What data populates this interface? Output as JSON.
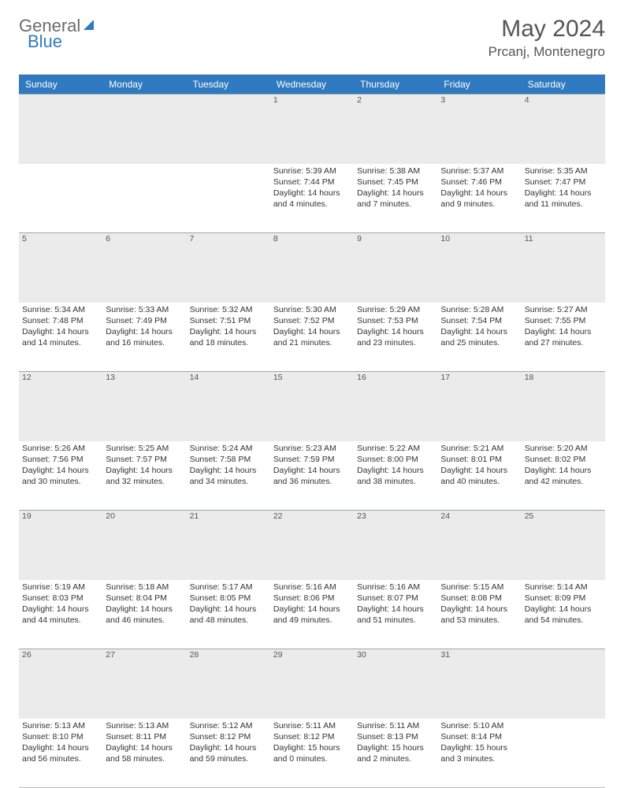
{
  "logo": {
    "text1": "General",
    "text2": "Blue"
  },
  "title": "May 2024",
  "location": "Prcanj, Montenegro",
  "day_headers": [
    "Sunday",
    "Monday",
    "Tuesday",
    "Wednesday",
    "Thursday",
    "Friday",
    "Saturday"
  ],
  "header_bg": "#2f7ac0",
  "header_text": "#ffffff",
  "daynum_bg": "#ebebeb",
  "weeks": [
    {
      "nums": [
        "",
        "",
        "",
        "1",
        "2",
        "3",
        "4"
      ],
      "cells": [
        null,
        null,
        null,
        {
          "sunrise": "Sunrise: 5:39 AM",
          "sunset": "Sunset: 7:44 PM",
          "daylight": "Daylight: 14 hours and 4 minutes."
        },
        {
          "sunrise": "Sunrise: 5:38 AM",
          "sunset": "Sunset: 7:45 PM",
          "daylight": "Daylight: 14 hours and 7 minutes."
        },
        {
          "sunrise": "Sunrise: 5:37 AM",
          "sunset": "Sunset: 7:46 PM",
          "daylight": "Daylight: 14 hours and 9 minutes."
        },
        {
          "sunrise": "Sunrise: 5:35 AM",
          "sunset": "Sunset: 7:47 PM",
          "daylight": "Daylight: 14 hours and 11 minutes."
        }
      ]
    },
    {
      "nums": [
        "5",
        "6",
        "7",
        "8",
        "9",
        "10",
        "11"
      ],
      "cells": [
        {
          "sunrise": "Sunrise: 5:34 AM",
          "sunset": "Sunset: 7:48 PM",
          "daylight": "Daylight: 14 hours and 14 minutes."
        },
        {
          "sunrise": "Sunrise: 5:33 AM",
          "sunset": "Sunset: 7:49 PM",
          "daylight": "Daylight: 14 hours and 16 minutes."
        },
        {
          "sunrise": "Sunrise: 5:32 AM",
          "sunset": "Sunset: 7:51 PM",
          "daylight": "Daylight: 14 hours and 18 minutes."
        },
        {
          "sunrise": "Sunrise: 5:30 AM",
          "sunset": "Sunset: 7:52 PM",
          "daylight": "Daylight: 14 hours and 21 minutes."
        },
        {
          "sunrise": "Sunrise: 5:29 AM",
          "sunset": "Sunset: 7:53 PM",
          "daylight": "Daylight: 14 hours and 23 minutes."
        },
        {
          "sunrise": "Sunrise: 5:28 AM",
          "sunset": "Sunset: 7:54 PM",
          "daylight": "Daylight: 14 hours and 25 minutes."
        },
        {
          "sunrise": "Sunrise: 5:27 AM",
          "sunset": "Sunset: 7:55 PM",
          "daylight": "Daylight: 14 hours and 27 minutes."
        }
      ]
    },
    {
      "nums": [
        "12",
        "13",
        "14",
        "15",
        "16",
        "17",
        "18"
      ],
      "cells": [
        {
          "sunrise": "Sunrise: 5:26 AM",
          "sunset": "Sunset: 7:56 PM",
          "daylight": "Daylight: 14 hours and 30 minutes."
        },
        {
          "sunrise": "Sunrise: 5:25 AM",
          "sunset": "Sunset: 7:57 PM",
          "daylight": "Daylight: 14 hours and 32 minutes."
        },
        {
          "sunrise": "Sunrise: 5:24 AM",
          "sunset": "Sunset: 7:58 PM",
          "daylight": "Daylight: 14 hours and 34 minutes."
        },
        {
          "sunrise": "Sunrise: 5:23 AM",
          "sunset": "Sunset: 7:59 PM",
          "daylight": "Daylight: 14 hours and 36 minutes."
        },
        {
          "sunrise": "Sunrise: 5:22 AM",
          "sunset": "Sunset: 8:00 PM",
          "daylight": "Daylight: 14 hours and 38 minutes."
        },
        {
          "sunrise": "Sunrise: 5:21 AM",
          "sunset": "Sunset: 8:01 PM",
          "daylight": "Daylight: 14 hours and 40 minutes."
        },
        {
          "sunrise": "Sunrise: 5:20 AM",
          "sunset": "Sunset: 8:02 PM",
          "daylight": "Daylight: 14 hours and 42 minutes."
        }
      ]
    },
    {
      "nums": [
        "19",
        "20",
        "21",
        "22",
        "23",
        "24",
        "25"
      ],
      "cells": [
        {
          "sunrise": "Sunrise: 5:19 AM",
          "sunset": "Sunset: 8:03 PM",
          "daylight": "Daylight: 14 hours and 44 minutes."
        },
        {
          "sunrise": "Sunrise: 5:18 AM",
          "sunset": "Sunset: 8:04 PM",
          "daylight": "Daylight: 14 hours and 46 minutes."
        },
        {
          "sunrise": "Sunrise: 5:17 AM",
          "sunset": "Sunset: 8:05 PM",
          "daylight": "Daylight: 14 hours and 48 minutes."
        },
        {
          "sunrise": "Sunrise: 5:16 AM",
          "sunset": "Sunset: 8:06 PM",
          "daylight": "Daylight: 14 hours and 49 minutes."
        },
        {
          "sunrise": "Sunrise: 5:16 AM",
          "sunset": "Sunset: 8:07 PM",
          "daylight": "Daylight: 14 hours and 51 minutes."
        },
        {
          "sunrise": "Sunrise: 5:15 AM",
          "sunset": "Sunset: 8:08 PM",
          "daylight": "Daylight: 14 hours and 53 minutes."
        },
        {
          "sunrise": "Sunrise: 5:14 AM",
          "sunset": "Sunset: 8:09 PM",
          "daylight": "Daylight: 14 hours and 54 minutes."
        }
      ]
    },
    {
      "nums": [
        "26",
        "27",
        "28",
        "29",
        "30",
        "31",
        ""
      ],
      "cells": [
        {
          "sunrise": "Sunrise: 5:13 AM",
          "sunset": "Sunset: 8:10 PM",
          "daylight": "Daylight: 14 hours and 56 minutes."
        },
        {
          "sunrise": "Sunrise: 5:13 AM",
          "sunset": "Sunset: 8:11 PM",
          "daylight": "Daylight: 14 hours and 58 minutes."
        },
        {
          "sunrise": "Sunrise: 5:12 AM",
          "sunset": "Sunset: 8:12 PM",
          "daylight": "Daylight: 14 hours and 59 minutes."
        },
        {
          "sunrise": "Sunrise: 5:11 AM",
          "sunset": "Sunset: 8:12 PM",
          "daylight": "Daylight: 15 hours and 0 minutes."
        },
        {
          "sunrise": "Sunrise: 5:11 AM",
          "sunset": "Sunset: 8:13 PM",
          "daylight": "Daylight: 15 hours and 2 minutes."
        },
        {
          "sunrise": "Sunrise: 5:10 AM",
          "sunset": "Sunset: 8:14 PM",
          "daylight": "Daylight: 15 hours and 3 minutes."
        },
        null
      ]
    }
  ]
}
